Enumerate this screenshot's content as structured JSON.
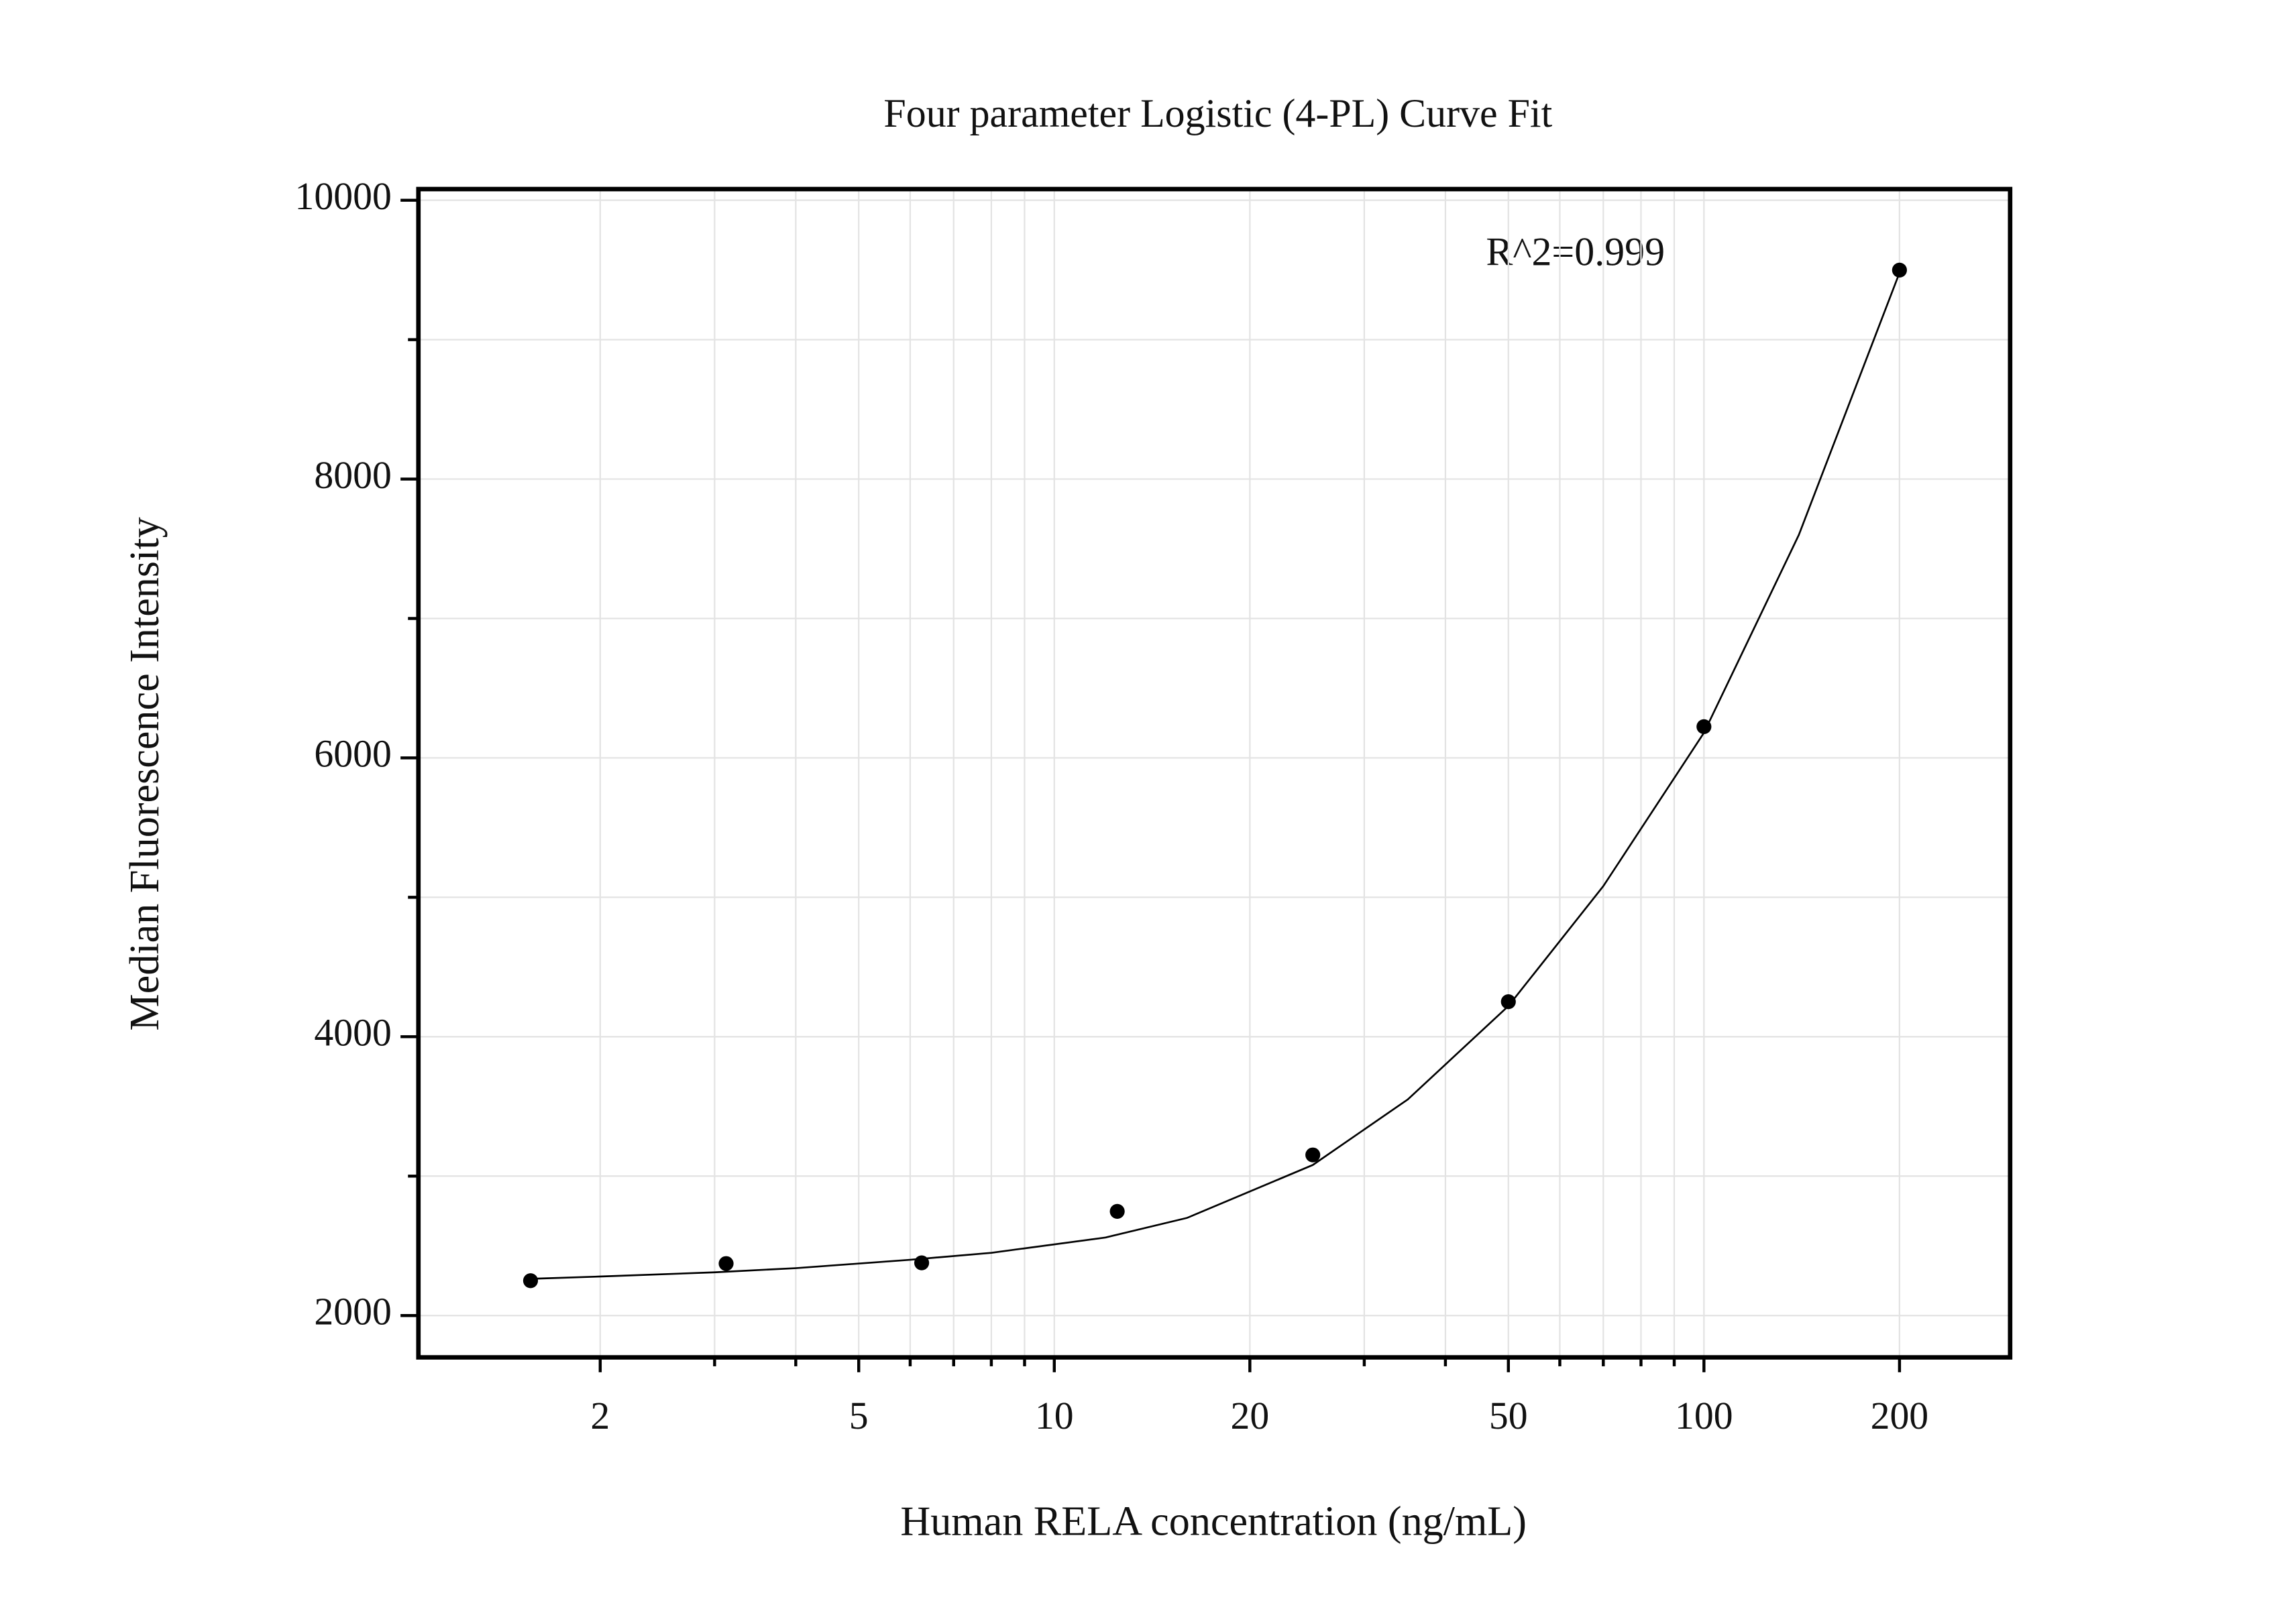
{
  "chart_data": {
    "type": "scatter",
    "title": "Four parameter Logistic (4-PL) Curve Fit",
    "x_label": "Human RELA concentration (ng/mL)",
    "y_label": "Median Fluorescence Intensity",
    "annotation": "R^2=0.999",
    "xscale": "log",
    "xlim": [
      1.05,
      296
    ],
    "ylim": [
      1700,
      10080
    ],
    "xticks": [
      2,
      5,
      10,
      20,
      50,
      100,
      200
    ],
    "xminorticks": [
      3,
      4,
      6,
      7,
      8,
      9,
      30,
      40,
      60,
      70,
      80,
      90
    ],
    "yticks": [
      2000,
      4000,
      6000,
      8000,
      10000
    ],
    "yminorticks": [
      3000,
      5000,
      7000,
      9000
    ],
    "grid": true,
    "series": [
      {
        "kind": "points",
        "color": "#000000",
        "x": [
          1.5625,
          3.125,
          6.25,
          12.5,
          25,
          50,
          100,
          200
        ],
        "values": [
          2250,
          2373,
          2378,
          2747,
          3152,
          4251,
          6224,
          9499
        ]
      },
      {
        "kind": "fit",
        "color": "#000000",
        "x": [
          1.6,
          2,
          3,
          4,
          6,
          8,
          12,
          16,
          25,
          35,
          50,
          70,
          100,
          140,
          200
        ],
        "values": [
          2265,
          2280,
          2310,
          2340,
          2400,
          2450,
          2560,
          2700,
          3080,
          3550,
          4220,
          5080,
          6180,
          7600,
          9480
        ]
      }
    ]
  }
}
